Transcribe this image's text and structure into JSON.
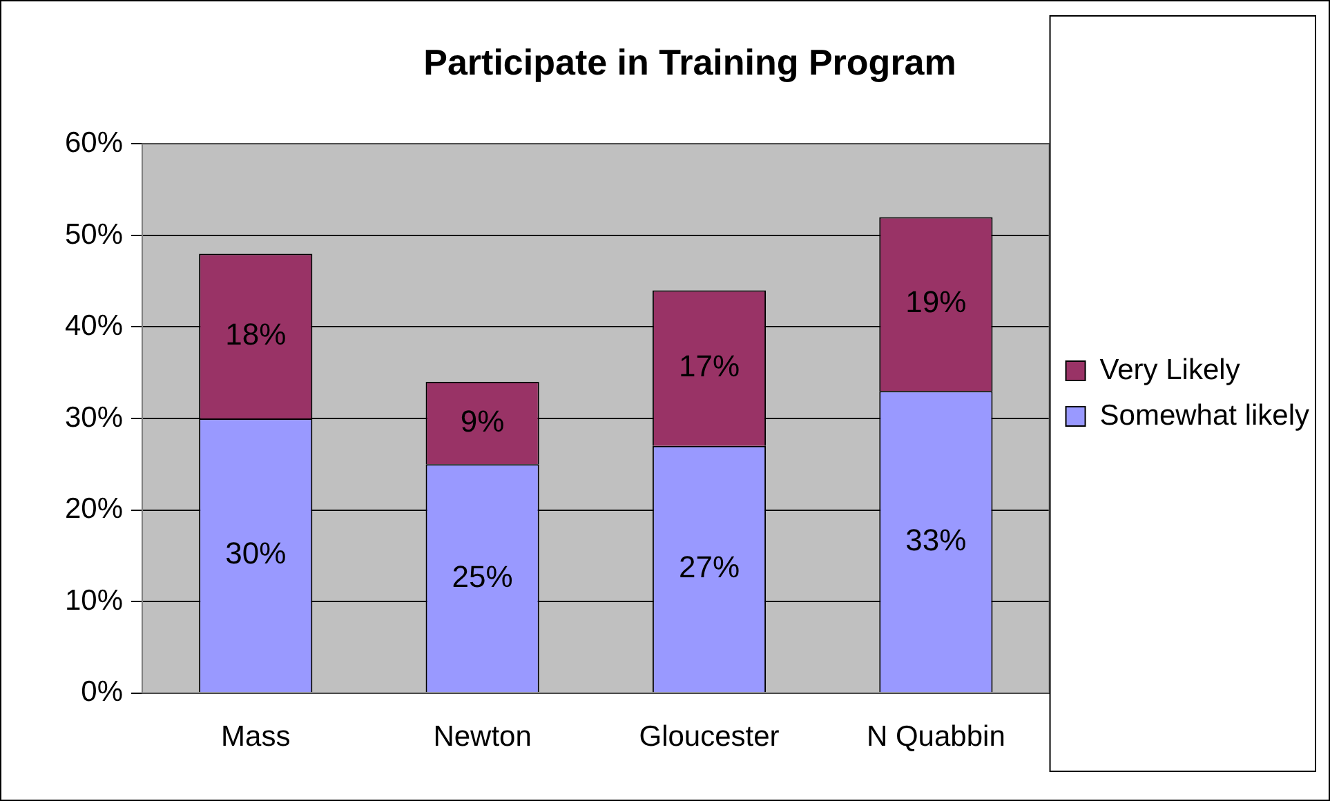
{
  "chart_data": {
    "type": "bar",
    "title": "Participate in Training Program",
    "categories": [
      "Mass",
      "Newton",
      "Gloucester",
      "N Quabbin"
    ],
    "stacked": true,
    "ylim": [
      0,
      60
    ],
    "yticks": [
      {
        "value": 0,
        "label": "0%"
      },
      {
        "value": 10,
        "label": "10%"
      },
      {
        "value": 20,
        "label": "20%"
      },
      {
        "value": 30,
        "label": "30%"
      },
      {
        "value": 40,
        "label": "40%"
      },
      {
        "value": 50,
        "label": "50%"
      },
      {
        "value": 60,
        "label": "60%"
      }
    ],
    "grid": "y",
    "legend": "right",
    "series": [
      {
        "name": "Somewhat likely",
        "color": "#9999ff",
        "values": [
          30,
          25,
          27,
          33
        ],
        "value_labels": [
          "30%",
          "25%",
          "27%",
          "33%"
        ]
      },
      {
        "name": "Very Likely",
        "color": "#993366",
        "values": [
          18,
          9,
          17,
          19
        ],
        "value_labels": [
          "18%",
          "9%",
          "17%",
          "19%"
        ]
      }
    ]
  }
}
